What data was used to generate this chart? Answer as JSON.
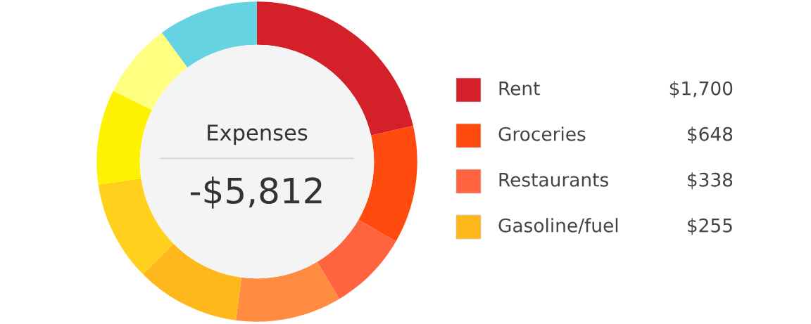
{
  "chart_data": {
    "type": "donut",
    "title": "Expenses",
    "subtitle": "-$5,812",
    "categories": [
      "Rent",
      "Groceries",
      "Restaurants",
      null,
      "Gasoline/fuel",
      null,
      null,
      null,
      null
    ],
    "values": [
      21.4,
      11.9,
      8.1,
      10.7,
      10.5,
      10.1,
      9.6,
      7.6,
      10.1
    ],
    "annotations": [
      "$1,700",
      "$648",
      "$338",
      "$255"
    ],
    "colors": [
      "#d42029",
      "#ff4b0f",
      "#ff6340",
      "#ff8c40",
      "#ffb81c",
      "#ffd01c",
      "#fff200",
      "#ffff80",
      "#66d3e2"
    ],
    "legend": "right"
  }
}
